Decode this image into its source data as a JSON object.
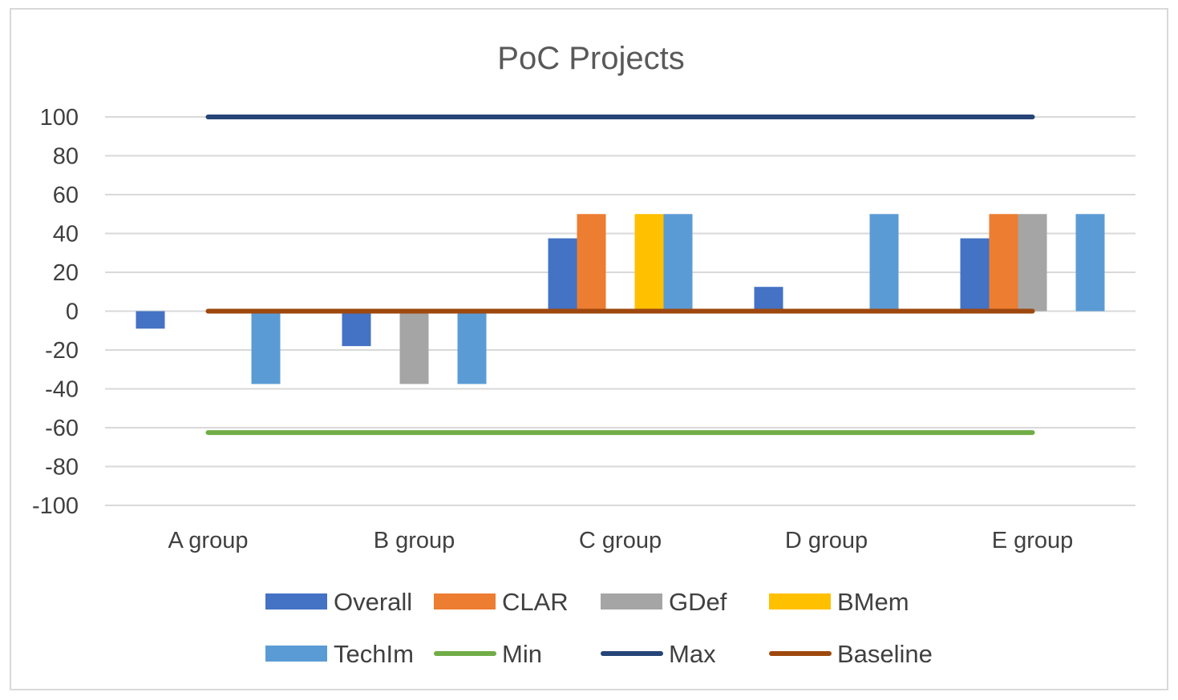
{
  "chart_data": {
    "type": "bar",
    "title": "PoC Projects",
    "categories": [
      "A group",
      "B group",
      "C group",
      "D group",
      "E group"
    ],
    "ylim": [
      -100,
      100
    ],
    "yticks": [
      100,
      80,
      60,
      40,
      20,
      0,
      -20,
      -40,
      -60,
      -80,
      -100
    ],
    "grid": true,
    "legend_position": "bottom",
    "bar_series": [
      {
        "name": "Overall",
        "color": "#4472C4",
        "values": [
          -9,
          -18,
          37.5,
          12.5,
          37.5
        ]
      },
      {
        "name": "CLAR",
        "color": "#ED7D31",
        "values": [
          0,
          0,
          50,
          0,
          50
        ]
      },
      {
        "name": "GDef",
        "color": "#A5A5A5",
        "values": [
          0,
          -37.5,
          0,
          0,
          50
        ]
      },
      {
        "name": "BMem",
        "color": "#FFC000",
        "values": [
          0,
          0,
          50,
          0,
          0
        ]
      },
      {
        "name": "TechIm",
        "color": "#5B9BD5",
        "values": [
          -37.5,
          -37.5,
          50,
          50,
          50
        ]
      }
    ],
    "line_series": [
      {
        "name": "Min",
        "color": "#70AD47",
        "values": [
          -62.5,
          -62.5,
          -62.5,
          -62.5,
          -62.5
        ]
      },
      {
        "name": "Max",
        "color": "#264478",
        "values": [
          100,
          100,
          100,
          100,
          100
        ]
      },
      {
        "name": "Baseline",
        "color": "#9E480E",
        "values": [
          0,
          0,
          0,
          0,
          0
        ]
      }
    ],
    "legend_order": [
      {
        "name": "Overall",
        "kind": "bar",
        "color": "#4472C4"
      },
      {
        "name": "CLAR",
        "kind": "bar",
        "color": "#ED7D31"
      },
      {
        "name": "GDef",
        "kind": "bar",
        "color": "#A5A5A5"
      },
      {
        "name": "BMem",
        "kind": "bar",
        "color": "#FFC000"
      },
      {
        "name": "TechIm",
        "kind": "bar",
        "color": "#5B9BD5"
      },
      {
        "name": "Min",
        "kind": "line",
        "color": "#70AD47"
      },
      {
        "name": "Max",
        "kind": "line",
        "color": "#264478"
      },
      {
        "name": "Baseline",
        "kind": "line",
        "color": "#9E480E"
      }
    ]
  },
  "colors": {
    "gridline": "#d9d9d9",
    "frame": "#d9d9d9"
  }
}
